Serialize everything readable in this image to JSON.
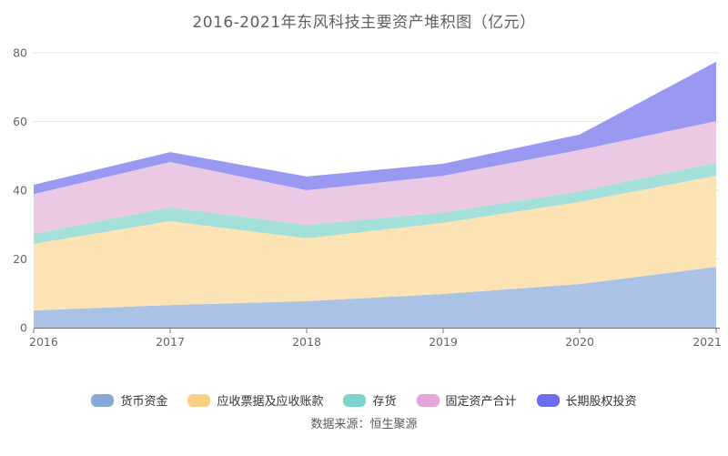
{
  "title": "2016-2021年东风科技主要资产堆积图（亿元）",
  "source": "数据来源：恒生聚源",
  "colors": {
    "title_text": "#5e5e5e",
    "axis_line": "#6e7079",
    "grid_line": "#e2e2ef",
    "tick_text": "#666666",
    "legend_text": "#333333"
  },
  "chart_data": {
    "type": "area",
    "stacked": true,
    "title": "2016-2021年东风科技主要资产堆积图（亿元）",
    "xlabel": "",
    "ylabel": "",
    "categories": [
      "2016",
      "2017",
      "2018",
      "2019",
      "2020",
      "2021"
    ],
    "yticks": [
      0,
      20,
      40,
      60,
      80
    ],
    "ytick_labels": [
      "0",
      "20",
      "40",
      "60",
      "80"
    ],
    "ylim": [
      0,
      80
    ],
    "grid": true,
    "legend_position": "bottom",
    "series": [
      {
        "name": "货币资金",
        "fill": "#a9c2e5",
        "swatch": "#88a8d8",
        "values": [
          5.0,
          6.6,
          7.7,
          9.8,
          12.7,
          17.7
        ]
      },
      {
        "name": "应收票据及应收账款",
        "fill": "#fce3b3",
        "swatch": "#f9d084",
        "values": [
          19.4,
          24.4,
          18.3,
          20.7,
          23.9,
          26.5
        ]
      },
      {
        "name": "存货",
        "fill": "#a4dfd9",
        "swatch": "#7cd4cd",
        "values": [
          2.9,
          4.0,
          3.9,
          3.0,
          3.1,
          3.8
        ]
      },
      {
        "name": "固定资产合计",
        "fill": "#ebc9e4",
        "swatch": "#e4a6d9",
        "values": [
          11.6,
          13.2,
          10.1,
          10.7,
          12.0,
          12.1
        ]
      },
      {
        "name": "长期股权投资",
        "fill": "#9a99f2",
        "swatch": "#6e6cef",
        "values": [
          2.7,
          2.9,
          4.0,
          3.5,
          4.5,
          17.3
        ]
      }
    ],
    "stacked_totals": [
      41.6,
      51.1,
      44.0,
      47.7,
      56.2,
      77.4
    ]
  }
}
